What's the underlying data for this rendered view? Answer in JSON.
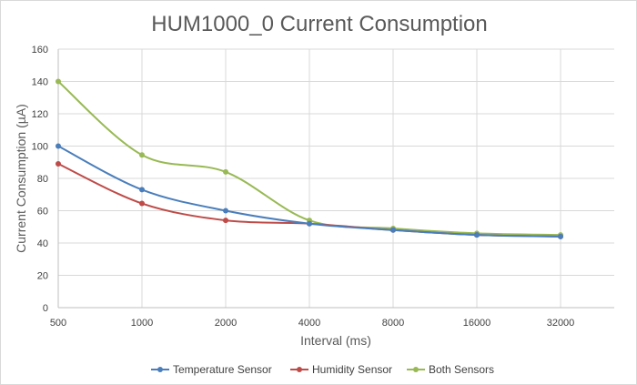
{
  "chart_data": {
    "type": "line",
    "title": "HUM1000_0 Current Consumption",
    "xlabel": "Interval (ms)",
    "ylabel": "Current Consumption (µA)",
    "categories": [
      "500",
      "1000",
      "2000",
      "4000",
      "8000",
      "16000",
      "32000"
    ],
    "ylim": [
      0,
      160
    ],
    "yticks": [
      "0",
      "20",
      "40",
      "60",
      "80",
      "100",
      "120",
      "140",
      "160"
    ],
    "grid": true,
    "legend_position": "bottom",
    "series": [
      {
        "name": "Temperature Sensor",
        "color": "#4a7ebb",
        "values": [
          100,
          73,
          60,
          52,
          48,
          45,
          44
        ]
      },
      {
        "name": "Humidity Sensor",
        "color": "#be4b48",
        "values": [
          89,
          64.5,
          54,
          52,
          48,
          45,
          44
        ]
      },
      {
        "name": "Both Sensors",
        "color": "#98b954",
        "values": [
          140,
          94.5,
          84,
          54,
          49,
          46,
          45
        ]
      }
    ]
  }
}
